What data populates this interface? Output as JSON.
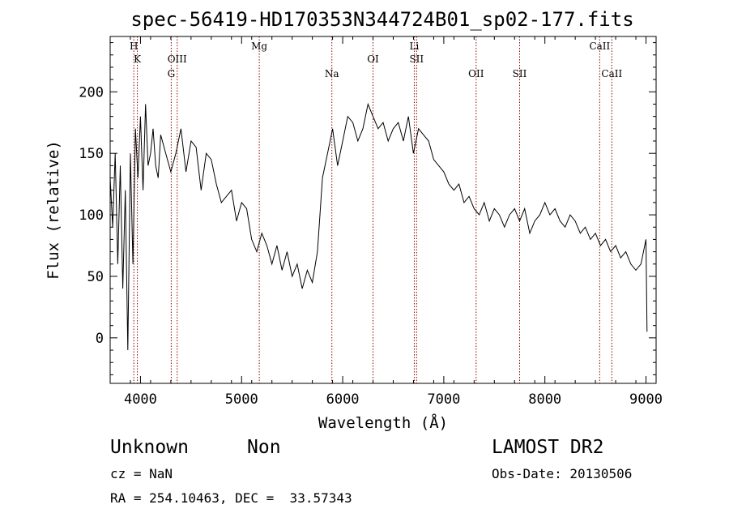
{
  "chart_data": {
    "type": "line",
    "title": "spec-56419-HD170353N344724B01_sp02-177.fits",
    "xlabel": "Wavelength (Å)",
    "ylabel": "Flux (relative)",
    "xlim": [
      3700,
      9100
    ],
    "ylim": [
      -37,
      245
    ],
    "x_ticks": [
      4000,
      5000,
      6000,
      7000,
      8000,
      9000
    ],
    "y_ticks": [
      0,
      50,
      100,
      150,
      200
    ],
    "grid": false,
    "line_color": "#000000",
    "marker_color": "#8b0000",
    "spectral_lines": [
      {
        "name": "H",
        "x": 3934,
        "row": 0
      },
      {
        "name": "K",
        "x": 3969,
        "row": 1
      },
      {
        "name": "OIII",
        "x": 4363,
        "row": 1
      },
      {
        "name": "G",
        "x": 4304,
        "row": 2
      },
      {
        "name": "Mg",
        "x": 5175,
        "row": 0
      },
      {
        "name": "Na",
        "x": 5893,
        "row": 2
      },
      {
        "name": "OI",
        "x": 6300,
        "row": 1
      },
      {
        "name": "Li",
        "x": 6708,
        "row": 0
      },
      {
        "name": "SII",
        "x": 6731,
        "row": 1
      },
      {
        "name": "OII",
        "x": 7320,
        "row": 2
      },
      {
        "name": "SII",
        "x": 7750,
        "row": 2
      },
      {
        "name": "CaII",
        "x": 8542,
        "row": 0
      },
      {
        "name": "CaII",
        "x": 8662,
        "row": 2
      }
    ],
    "series": [
      {
        "x": [
          3700,
          3725,
          3750,
          3775,
          3800,
          3825,
          3850,
          3875,
          3900,
          3925,
          3950,
          3975,
          4000,
          4025,
          4050,
          4075,
          4100,
          4125,
          4150,
          4175,
          4200,
          4250,
          4300,
          4350,
          4400,
          4450,
          4500,
          4550,
          4600,
          4650,
          4700,
          4750,
          4800,
          4850,
          4900,
          4950,
          5000,
          5050,
          5100,
          5150,
          5200,
          5250,
          5300,
          5350,
          5400,
          5450,
          5500,
          5550,
          5600,
          5650,
          5700,
          5750,
          5800,
          5850,
          5900,
          5950,
          6000,
          6050,
          6100,
          6150,
          6200,
          6250,
          6300,
          6350,
          6400,
          6450,
          6500,
          6550,
          6600,
          6650,
          6700,
          6750,
          6800,
          6850,
          6900,
          6950,
          7000,
          7050,
          7100,
          7150,
          7200,
          7250,
          7300,
          7350,
          7400,
          7450,
          7500,
          7550,
          7600,
          7650,
          7700,
          7750,
          7800,
          7850,
          7900,
          7950,
          8000,
          8050,
          8100,
          8150,
          8200,
          8250,
          8300,
          8350,
          8400,
          8450,
          8500,
          8550,
          8600,
          8650,
          8700,
          8750,
          8800,
          8850,
          8900,
          8950,
          9000,
          9010
        ],
        "y": [
          130,
          90,
          150,
          60,
          140,
          40,
          120,
          -10,
          150,
          60,
          170,
          130,
          180,
          120,
          190,
          140,
          150,
          170,
          140,
          130,
          165,
          150,
          135,
          150,
          170,
          135,
          160,
          155,
          120,
          150,
          145,
          125,
          110,
          115,
          120,
          95,
          110,
          105,
          80,
          70,
          85,
          75,
          60,
          75,
          55,
          70,
          50,
          60,
          40,
          55,
          45,
          70,
          130,
          150,
          170,
          140,
          160,
          180,
          175,
          160,
          170,
          190,
          180,
          170,
          175,
          160,
          170,
          175,
          160,
          180,
          150,
          170,
          165,
          160,
          145,
          140,
          135,
          125,
          120,
          125,
          110,
          115,
          105,
          100,
          110,
          95,
          105,
          100,
          90,
          100,
          105,
          95,
          105,
          85,
          95,
          100,
          110,
          100,
          105,
          95,
          90,
          100,
          95,
          85,
          90,
          80,
          85,
          75,
          80,
          70,
          75,
          65,
          70,
          60,
          55,
          60,
          80,
          5
        ]
      }
    ]
  },
  "footer": {
    "class_label": "Unknown",
    "subclass_label": "Non",
    "survey": "LAMOST DR2",
    "cz": "cz = NaN",
    "obs_date": "Obs-Date: 20130506",
    "coords": "RA = 254.10463, DEC =  33.57343"
  }
}
